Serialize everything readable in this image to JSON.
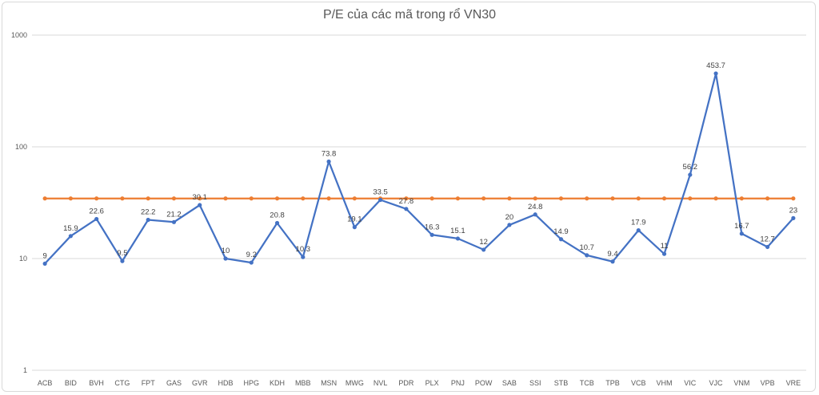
{
  "chart_data": {
    "type": "line",
    "title": "P/E của các mã trong rổ VN30",
    "xlabel": "",
    "ylabel": "",
    "y_scale": "log",
    "ylim": [
      1,
      1000
    ],
    "y_ticks": [
      "1",
      "10",
      "100",
      "1000"
    ],
    "grid": true,
    "legend": "none",
    "categories": [
      "ACB",
      "BID",
      "BVH",
      "CTG",
      "FPT",
      "GAS",
      "GVR",
      "HDB",
      "HPG",
      "KDH",
      "MBB",
      "MSN",
      "MWG",
      "NVL",
      "PDR",
      "PLX",
      "PNJ",
      "POW",
      "SAB",
      "SSI",
      "STB",
      "TCB",
      "TPB",
      "VCB",
      "VHM",
      "VIC",
      "VJC",
      "VNM",
      "VPB",
      "VRE"
    ],
    "series": [
      {
        "color": "#4472c4",
        "values": [
          9,
          15.9,
          22.6,
          9.5,
          22.2,
          21.2,
          30.1,
          10,
          9.2,
          20.8,
          10.3,
          73.8,
          19.1,
          33.5,
          27.8,
          16.3,
          15.1,
          12,
          20,
          24.8,
          14.9,
          10.7,
          9.4,
          17.9,
          11,
          56.2,
          453.7,
          16.7,
          12.7,
          23
        ],
        "labels": [
          "9",
          "15.9",
          "22.6",
          "9.5",
          "22.2",
          "21.2",
          "30.1",
          "10",
          "9.2",
          "20.8",
          "10.3",
          "73.8",
          "19.1",
          "33.5",
          "27.8",
          "16.3",
          "15.1",
          "12",
          "20",
          "24.8",
          "14.9",
          "10.7",
          "9.4",
          "17.9",
          "11",
          "56.2",
          "453.7",
          "16.7",
          "12.7",
          "23"
        ]
      },
      {
        "color": "#ed7d31",
        "values": [
          34.5,
          34.5,
          34.5,
          34.5,
          34.5,
          34.5,
          34.5,
          34.5,
          34.5,
          34.5,
          34.5,
          34.5,
          34.5,
          34.5,
          34.5,
          34.5,
          34.5,
          34.5,
          34.5,
          34.5,
          34.5,
          34.5,
          34.5,
          34.5,
          34.5,
          34.5,
          34.5,
          34.5,
          34.5,
          34.5
        ]
      }
    ]
  }
}
